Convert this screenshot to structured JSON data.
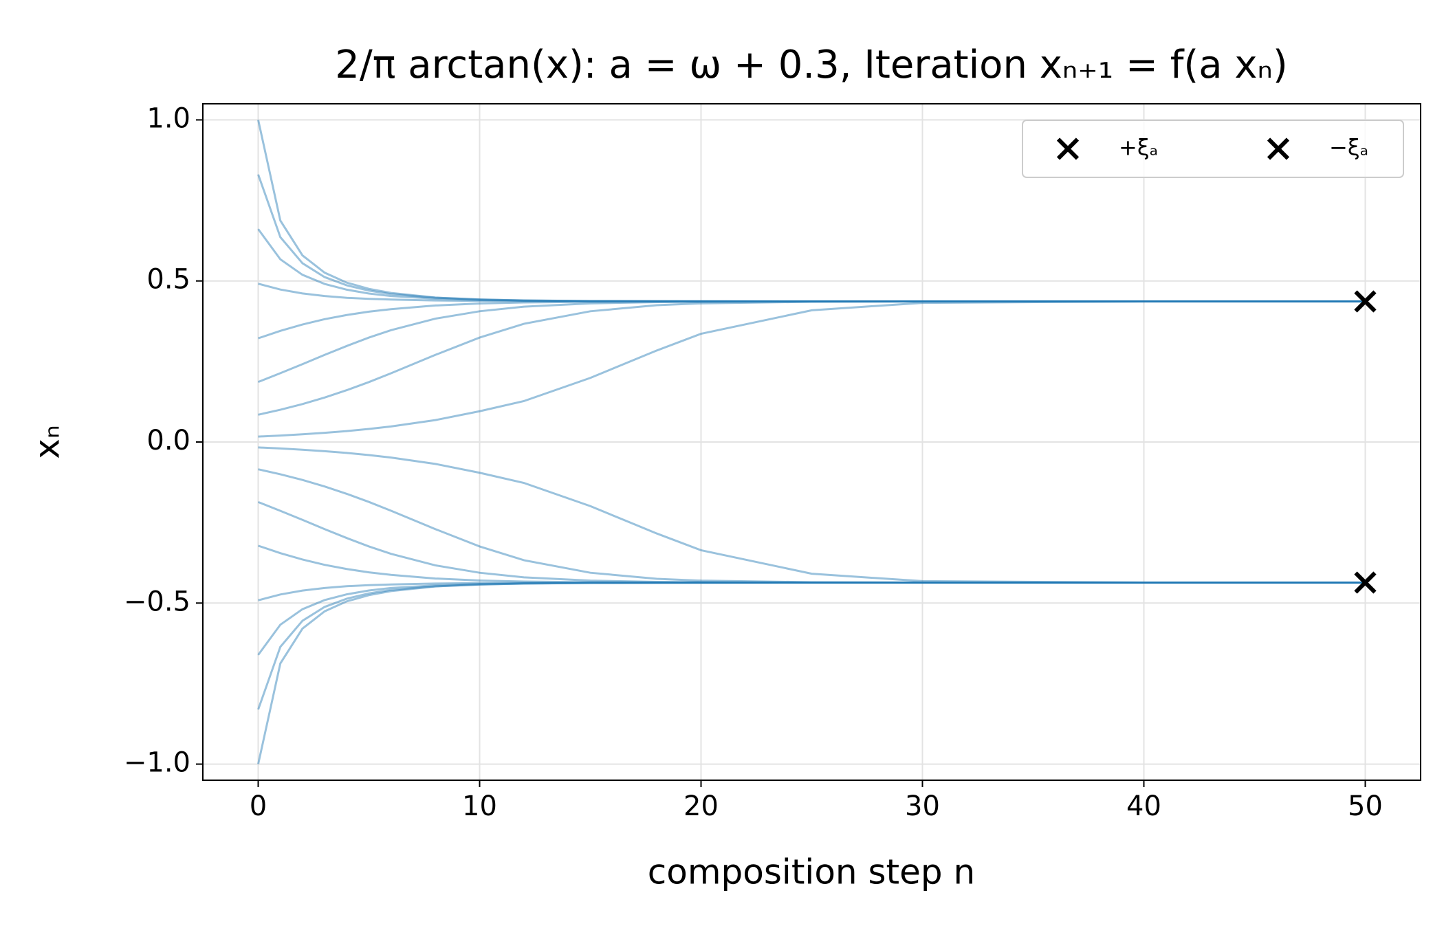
{
  "chart_data": {
    "type": "line",
    "title": "2/π arctan(x): a = ω + 0.3,  Iteration xₙ₊₁ = f(a xₙ)",
    "x_label": "composition step n",
    "y_label": "xₙ",
    "x": [
      0,
      1,
      2,
      3,
      4,
      5,
      6,
      8,
      10,
      12,
      15,
      18,
      20,
      25,
      30,
      40,
      50
    ],
    "line_color": "#1f77b4",
    "line_opacity": 0.45,
    "series": [
      {
        "values": [
          1.0,
          0.6875,
          0.5793,
          0.5257,
          0.4947,
          0.4755,
          0.4628,
          0.4484,
          0.4426,
          0.4396,
          0.4376,
          0.4369,
          0.4367,
          0.4365,
          0.4365,
          0.4365,
          0.4365
        ]
      },
      {
        "values": [
          0.8305,
          0.636,
          0.555,
          0.512,
          0.4865,
          0.4701,
          0.4592,
          0.448,
          0.4424,
          0.4395,
          0.4376,
          0.4369,
          0.4367,
          0.4365,
          0.4365,
          0.4365,
          0.4365
        ]
      },
      {
        "values": [
          0.661,
          0.5672,
          0.519,
          0.4908,
          0.4729,
          0.461,
          0.4531,
          0.4449,
          0.4408,
          0.4387,
          0.4372,
          0.4368,
          0.4366,
          0.4365,
          0.4365,
          0.4365,
          0.4365
        ]
      },
      {
        "values": [
          0.4915,
          0.4734,
          0.4613,
          0.4533,
          0.4477,
          0.4445,
          0.4422,
          0.4394,
          0.438,
          0.4372,
          0.4368,
          0.4366,
          0.4365,
          0.4365,
          0.4365,
          0.4365,
          0.4365
        ]
      },
      {
        "values": [
          0.322,
          0.3451,
          0.3649,
          0.3813,
          0.3943,
          0.4046,
          0.4124,
          0.4238,
          0.43,
          0.4332,
          0.4353,
          0.4361,
          0.4363,
          0.4365,
          0.4365,
          0.4365,
          0.4365
        ]
      },
      {
        "values": [
          0.1864,
          0.2136,
          0.2417,
          0.2704,
          0.2981,
          0.3242,
          0.3471,
          0.383,
          0.4059,
          0.4202,
          0.4304,
          0.4342,
          0.4353,
          0.4363,
          0.4365,
          0.4365,
          0.4365
        ]
      },
      {
        "values": [
          0.0847,
          0.1001,
          0.1178,
          0.1381,
          0.1609,
          0.1861,
          0.2134,
          0.2704,
          0.3242,
          0.3669,
          0.4059,
          0.4246,
          0.4304,
          0.4353,
          0.4363,
          0.4365,
          0.4365
        ]
      },
      {
        "values": [
          0.0169,
          0.0201,
          0.024,
          0.0286,
          0.034,
          0.0405,
          0.0482,
          0.068,
          0.0955,
          0.127,
          0.199,
          0.284,
          0.336,
          0.409,
          0.432,
          0.4364,
          0.4365
        ]
      },
      {
        "values": [
          -0.0169,
          -0.0201,
          -0.024,
          -0.0286,
          -0.034,
          -0.0405,
          -0.0482,
          -0.068,
          -0.0955,
          -0.127,
          -0.199,
          -0.284,
          -0.336,
          -0.409,
          -0.432,
          -0.4364,
          -0.4365
        ]
      },
      {
        "values": [
          -0.0847,
          -0.1001,
          -0.1178,
          -0.1381,
          -0.1609,
          -0.1861,
          -0.2134,
          -0.2704,
          -0.3242,
          -0.3669,
          -0.4059,
          -0.4246,
          -0.4304,
          -0.4353,
          -0.4363,
          -0.4365,
          -0.4365
        ]
      },
      {
        "values": [
          -0.1864,
          -0.2136,
          -0.2417,
          -0.2704,
          -0.2981,
          -0.3242,
          -0.3471,
          -0.383,
          -0.4059,
          -0.4202,
          -0.4304,
          -0.4342,
          -0.4353,
          -0.4363,
          -0.4365,
          -0.4365,
          -0.4365
        ]
      },
      {
        "values": [
          -0.322,
          -0.3451,
          -0.3649,
          -0.3813,
          -0.3943,
          -0.4046,
          -0.4124,
          -0.4238,
          -0.43,
          -0.4332,
          -0.4353,
          -0.4361,
          -0.4363,
          -0.4365,
          -0.4365,
          -0.4365,
          -0.4365
        ]
      },
      {
        "values": [
          -0.4915,
          -0.4734,
          -0.4613,
          -0.4533,
          -0.4477,
          -0.4445,
          -0.4422,
          -0.4394,
          -0.438,
          -0.4372,
          -0.4368,
          -0.4366,
          -0.4365,
          -0.4365,
          -0.4365,
          -0.4365,
          -0.4365
        ]
      },
      {
        "values": [
          -0.661,
          -0.5672,
          -0.519,
          -0.4908,
          -0.4729,
          -0.461,
          -0.4531,
          -0.4449,
          -0.4408,
          -0.4387,
          -0.4372,
          -0.4368,
          -0.4366,
          -0.4365,
          -0.4365,
          -0.4365,
          -0.4365
        ]
      },
      {
        "values": [
          -0.8305,
          -0.636,
          -0.555,
          -0.512,
          -0.4865,
          -0.4701,
          -0.4592,
          -0.448,
          -0.4424,
          -0.4395,
          -0.4376,
          -0.4369,
          -0.4367,
          -0.4365,
          -0.4365,
          -0.4365,
          -0.4365
        ]
      },
      {
        "values": [
          -1.0,
          -0.6875,
          -0.5793,
          -0.5257,
          -0.4947,
          -0.4755,
          -0.4628,
          -0.4484,
          -0.4426,
          -0.4396,
          -0.4376,
          -0.4369,
          -0.4367,
          -0.4365,
          -0.4365,
          -0.4365,
          -0.4365
        ]
      }
    ],
    "markers": [
      {
        "name": "+ξₐ",
        "x": 50,
        "y": 0.4365,
        "color": "#000000"
      },
      {
        "name": "−ξₐ",
        "x": 50,
        "y": -0.4365,
        "color": "#000000"
      }
    ],
    "xlim": [
      -2.5,
      52.5
    ],
    "xticks": [
      0,
      10,
      20,
      30,
      40,
      50
    ],
    "ylim": [
      -1.05,
      1.05
    ],
    "yticks": [
      {
        "value": -1.0,
        "label": "−1.0"
      },
      {
        "value": -0.5,
        "label": "−0.5"
      },
      {
        "value": 0,
        "label": "0.0"
      },
      {
        "value": 0.5,
        "label": "0.5"
      },
      {
        "value": 1.0,
        "label": "1.0"
      }
    ],
    "grid": true,
    "legend_position": "upper right"
  }
}
